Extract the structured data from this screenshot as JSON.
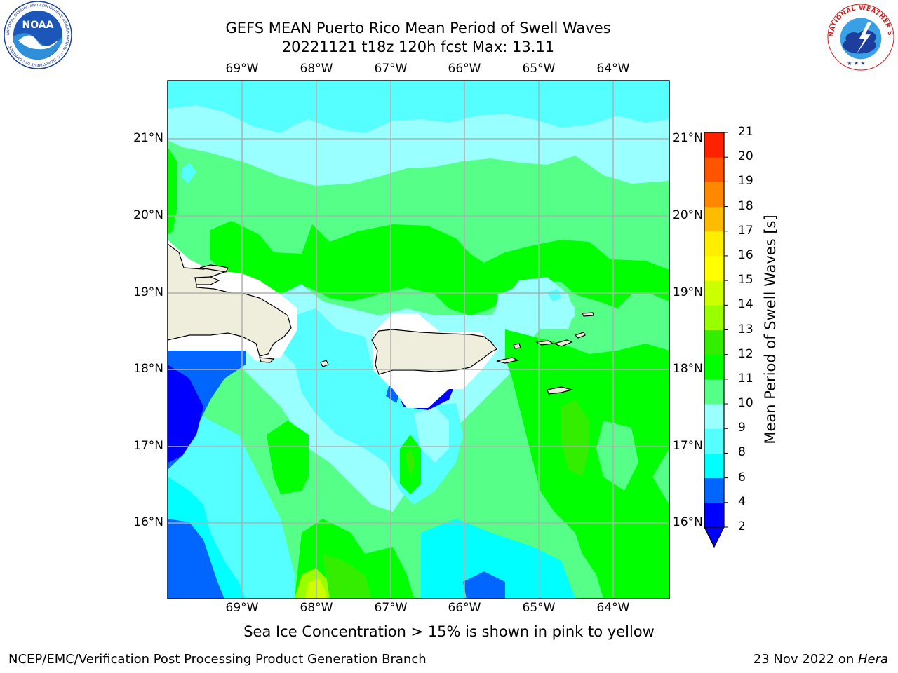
{
  "title": {
    "line1": "GEFS MEAN Puerto Rico Mean Period of Swell Waves",
    "line2": "20221121 t18z 120h fcst   Max: 13.11"
  },
  "map": {
    "lon_labels": [
      "69°W",
      "68°W",
      "67°W",
      "66°W",
      "65°W",
      "64°W"
    ],
    "lat_labels": [
      "21°N",
      "20°N",
      "19°N",
      "18°N",
      "17°N",
      "16°N"
    ],
    "land_color": "#efeedd",
    "gridline_color": "#b0b0b0"
  },
  "colorbar": {
    "title": "Mean Period of Swell Waves [s]",
    "levels": [
      "2",
      "4",
      "6",
      "8",
      "9",
      "10",
      "11",
      "12",
      "13",
      "14",
      "15",
      "16",
      "17",
      "18",
      "19",
      "20",
      "21"
    ],
    "colors": [
      "#0000ff",
      "#0066ff",
      "#00ffff",
      "#55ffff",
      "#99ffff",
      "#55ff88",
      "#00ff00",
      "#33ee00",
      "#99ff00",
      "#ccff00",
      "#ffff00",
      "#ffee00",
      "#ffbb00",
      "#ff8800",
      "#ff5500",
      "#ff2200"
    ],
    "under_color": "#0000ff"
  },
  "sea_ice_note": "Sea Ice Concentration > 15% is shown in pink to yellow",
  "footer": {
    "left": "NCEP/EMC/Verification Post Processing Product Generation Branch",
    "date": "23 Nov 2022 on ",
    "machine": "Hera"
  },
  "logos": {
    "noaa_text": "NOAA",
    "noaa_ring_text": "NATIONAL OCEANIC AND ATMOSPHERIC ADMINISTRATION · U.S. DEPARTMENT OF COMMERCE",
    "nws_ring_text": "NATIONAL WEATHER SERVICE"
  }
}
